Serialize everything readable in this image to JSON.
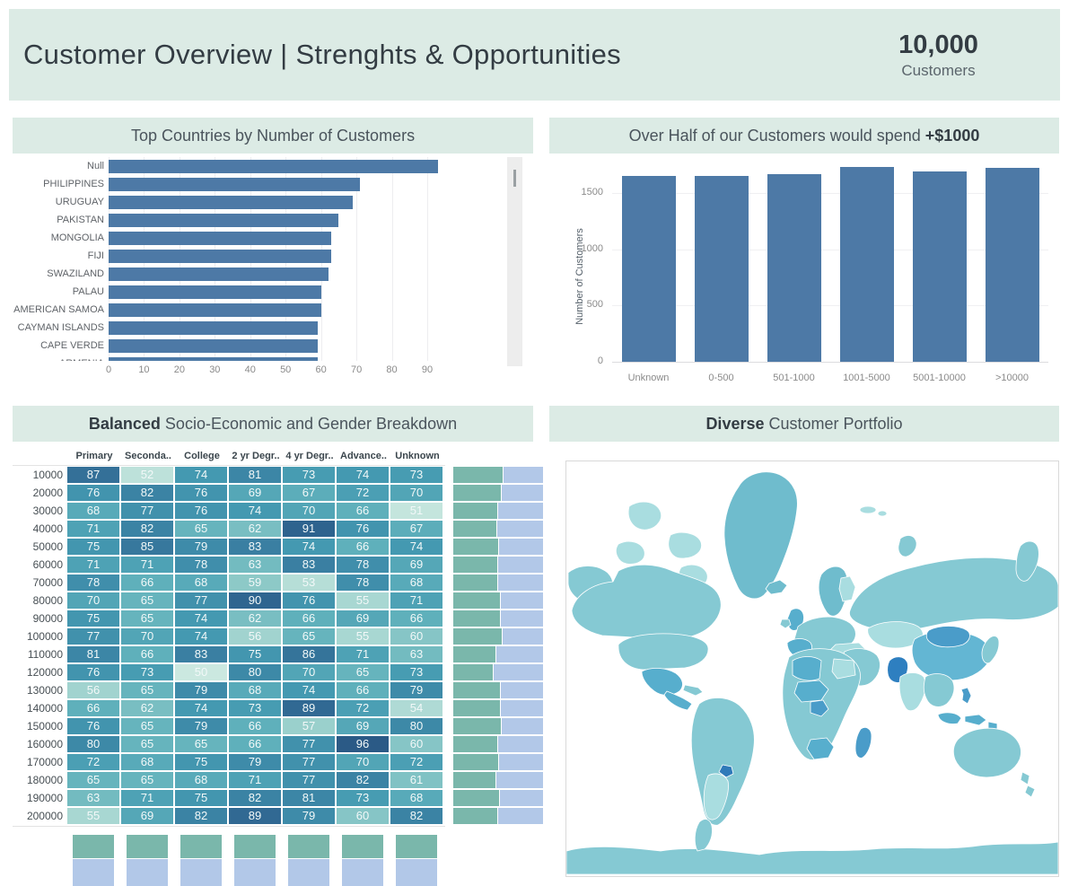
{
  "header": {
    "title": "Customer Overview | Strenghts & Opportunities",
    "kpi_value": "10,000",
    "kpi_label": "Customers"
  },
  "panels": [
    {
      "pre": "Top Countries by Number of Customers",
      "bold": "",
      "post": ""
    },
    {
      "pre": "Over Half of our Customers would spend ",
      "bold": "+$1000",
      "post": ""
    },
    {
      "pre": "",
      "bold": "Balanced",
      "post": " Socio-Economic and Gender Breakdown"
    },
    {
      "pre": "",
      "bold": "Diverse",
      "post": " Customer Portfolio"
    }
  ],
  "colors": {
    "mint_band": "#dcebe5",
    "title_text": "#4a545c",
    "title_text_bold": "#333c43",
    "bar_blue": "#4d79a6",
    "axis_text": "#8a8a8a",
    "row_label_text": "#5f6368",
    "heat_text": "#f2f8f8",
    "gender_green": "#7ab7ab",
    "gender_blue": "#b2c8e8",
    "map_base": "#85c9d3",
    "map_light": "#a9dde0",
    "map_med": "#6fbccd",
    "map_dark": "#57aecd",
    "map_highlight_dark": "#2e7fc0",
    "map_highlight_med": "#4a9cc9",
    "map_uruguay": "#2f7ab9",
    "map_china": "#63b6d3",
    "heat_scale": [
      "#cbe8e0",
      "#93ccc9",
      "#5fb0bb",
      "#4499b1",
      "#3b83a4",
      "#2f6590",
      "#2b5a86"
    ],
    "heat_scale_stops": [
      50,
      58,
      66,
      74,
      82,
      90,
      96
    ]
  },
  "chart_data": [
    {
      "name": "top_countries",
      "type": "bar",
      "orientation": "horizontal",
      "title": "Top Countries by Number of Customers",
      "categories": [
        "Null",
        "PHILIPPINES",
        "URUGUAY",
        "PAKISTAN",
        "MONGOLIA",
        "FIJI",
        "SWAZILAND",
        "PALAU",
        "AMERICAN SAMOA",
        "CAYMAN ISLANDS",
        "CAPE VERDE",
        "ARMENIA"
      ],
      "values": [
        93,
        71,
        69,
        65,
        63,
        63,
        62,
        60,
        60,
        59,
        59,
        59
      ],
      "xticks": [
        0,
        10,
        20,
        30,
        40,
        50,
        60,
        70,
        80,
        90
      ],
      "xlim": [
        0,
        100
      ],
      "grid": true,
      "scrollbar": true,
      "note": "scrollable list, last row clipped at bottom edge"
    },
    {
      "name": "spend_distribution",
      "type": "bar",
      "title": "Over Half of our Customers would spend +$1000",
      "categories": [
        "Unknown",
        "0-500",
        "501-1000",
        "1001-5000",
        "5001-10000",
        ">10000"
      ],
      "values": [
        1650,
        1655,
        1665,
        1730,
        1695,
        1720
      ],
      "ylabel": "Number of Customers",
      "yticks": [
        0,
        500,
        1000,
        1500
      ],
      "ylim": [
        0,
        1800
      ],
      "grid": true
    },
    {
      "name": "socio_economic_heatmap",
      "type": "heatmap",
      "title": "Balanced Socio-Economic and Gender Breakdown",
      "columns": [
        "Primary",
        "Seconda..",
        "College",
        "2 yr Degr..",
        "4 yr Degr..",
        "Advance..",
        "Unknown"
      ],
      "rows": [
        "10000",
        "20000",
        "30000",
        "40000",
        "50000",
        "60000",
        "70000",
        "80000",
        "90000",
        "100000",
        "110000",
        "120000",
        "130000",
        "140000",
        "150000",
        "160000",
        "170000",
        "180000",
        "190000",
        "200000"
      ],
      "values": [
        [
          87,
          52,
          74,
          81,
          73,
          74,
          73
        ],
        [
          76,
          82,
          76,
          69,
          67,
          72,
          70
        ],
        [
          68,
          77,
          76,
          74,
          70,
          66,
          51
        ],
        [
          71,
          82,
          65,
          62,
          91,
          76,
          67
        ],
        [
          75,
          85,
          79,
          83,
          74,
          66,
          74
        ],
        [
          71,
          71,
          78,
          63,
          83,
          78,
          69
        ],
        [
          78,
          66,
          68,
          59,
          53,
          78,
          68
        ],
        [
          70,
          65,
          77,
          90,
          76,
          55,
          71
        ],
        [
          75,
          65,
          74,
          62,
          66,
          69,
          66
        ],
        [
          77,
          70,
          74,
          56,
          65,
          55,
          60
        ],
        [
          81,
          66,
          83,
          75,
          86,
          71,
          63
        ],
        [
          76,
          73,
          50,
          80,
          70,
          65,
          73
        ],
        [
          56,
          65,
          79,
          68,
          74,
          66,
          79
        ],
        [
          66,
          62,
          74,
          73,
          89,
          72,
          54
        ],
        [
          76,
          65,
          79,
          66,
          57,
          69,
          80
        ],
        [
          80,
          65,
          65,
          66,
          77,
          96,
          60
        ],
        [
          72,
          68,
          75,
          79,
          77,
          70,
          72
        ],
        [
          65,
          65,
          68,
          71,
          77,
          82,
          61
        ],
        [
          63,
          71,
          75,
          82,
          81,
          73,
          68
        ],
        [
          55,
          69,
          82,
          89,
          79,
          60,
          82
        ]
      ],
      "color_domain": [
        50,
        96
      ],
      "row_gender_split_green_pct": [
        55,
        53,
        49,
        48,
        50,
        49,
        49,
        52,
        52,
        54,
        47,
        44,
        52,
        52,
        53,
        49,
        50,
        47,
        51,
        49
      ],
      "column_gender_split_green_pct": [
        46,
        45,
        46,
        45,
        46,
        45,
        46
      ]
    },
    {
      "name": "world_map",
      "type": "map",
      "title": "Diverse Customer Portfolio",
      "darker_regions": [
        "Pakistan",
        "Mongolia",
        "Uruguay",
        "China",
        "Philippines",
        "Madagascar",
        "Nigeria",
        "Mexico",
        "Indonesia",
        "Algeria",
        "South Africa",
        "United Kingdom",
        "Spain",
        "Greenland"
      ]
    }
  ]
}
